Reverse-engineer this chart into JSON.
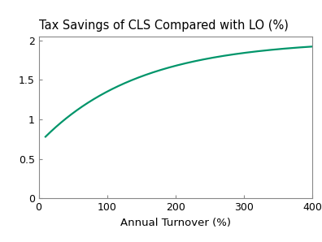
{
  "title": "Tax Savings of CLS Compared with LO (%)",
  "xlabel": "Annual Turnover (%)",
  "line_color": "#00956a",
  "xlim": [
    0,
    400
  ],
  "ylim": [
    0,
    2.05
  ],
  "xticks": [
    0,
    100,
    200,
    300,
    400
  ],
  "yticks": [
    0,
    0.5,
    1.0,
    1.5,
    2.0
  ],
  "x_start": 10,
  "asymptote": 2.0,
  "y_start": 0.78,
  "curve_k": 0.007,
  "title_fontsize": 10.5,
  "label_fontsize": 9.5,
  "tick_fontsize": 9
}
